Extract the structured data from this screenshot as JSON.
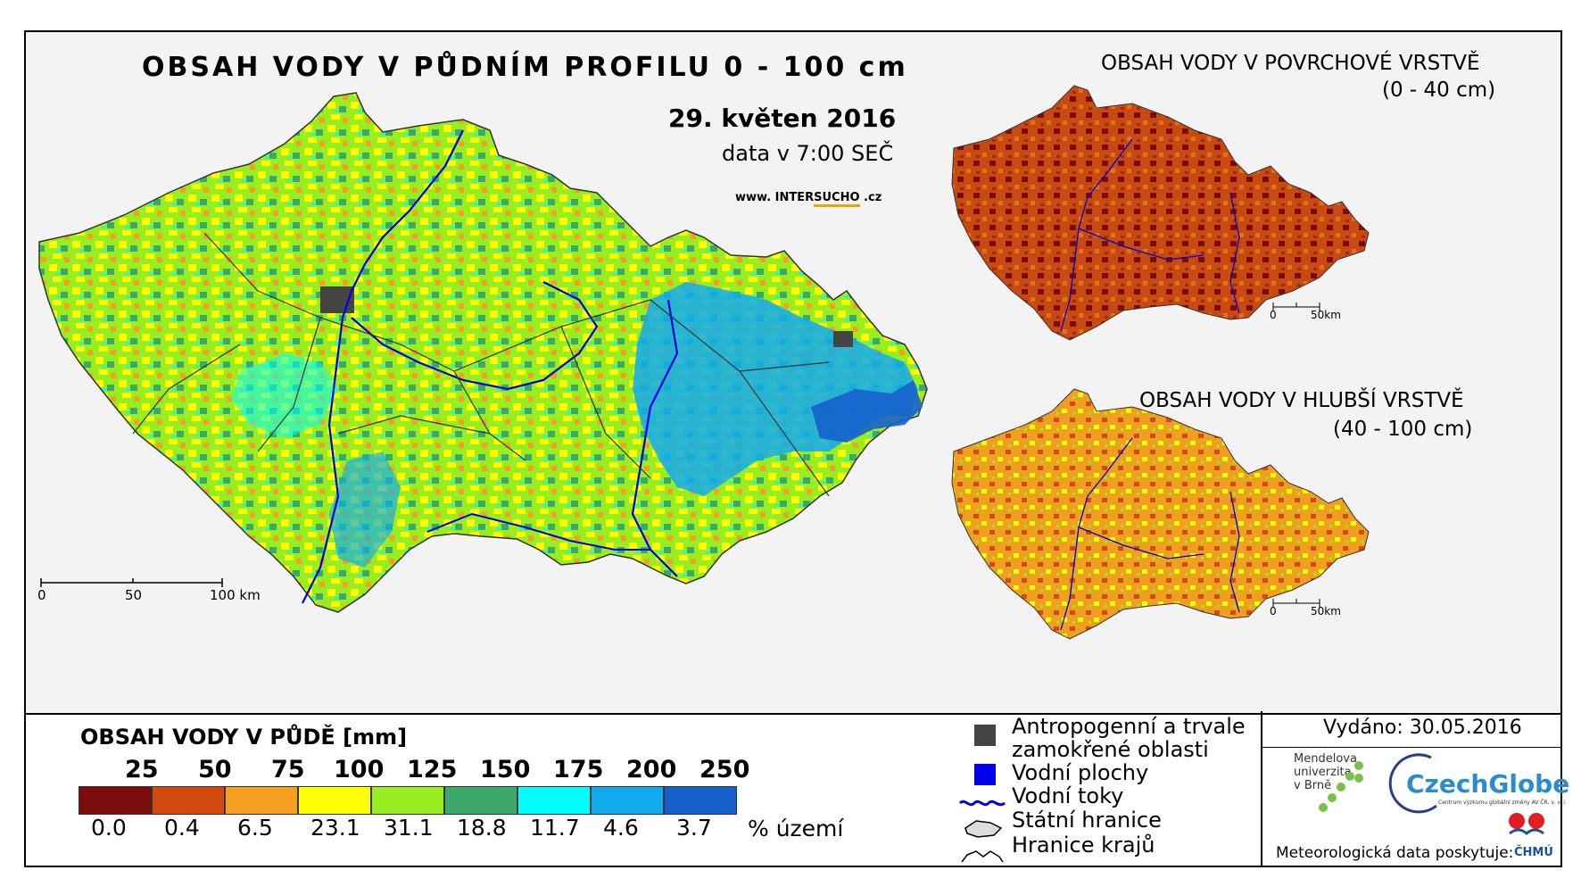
{
  "titles": {
    "main": "OBSAH VODY V PŮDNÍM PROFILU 0 - 100 cm",
    "date": "29. květen 2016",
    "time": "data v 7:00 SEČ",
    "web_prefix": "www. INTER",
    "web_highlight": "SUCHO",
    "web_suffix": " .cz",
    "surface": "OBSAH VODY V POVRCHOVÉ VRSTVĚ",
    "surface_range": "(0 - 40 cm)",
    "deep": "OBSAH VODY V HLUBŠÍ VRSTVĚ",
    "deep_range": "(40 - 100 cm)"
  },
  "scalebars": {
    "main": [
      "0",
      "50",
      "100 km"
    ],
    "small": [
      "0",
      "50km"
    ]
  },
  "legend": {
    "title": "OBSAH VODY V PŮDĚ [mm]",
    "thresholds": [
      "25",
      "50",
      "75",
      "100",
      "125",
      "150",
      "175",
      "200",
      "250"
    ],
    "percent_label": "% území",
    "classes": [
      {
        "color": "#7b0c0c",
        "percent": "0.0"
      },
      {
        "color": "#d24a0e",
        "percent": "0.4"
      },
      {
        "color": "#f5a020",
        "percent": "6.5"
      },
      {
        "color": "#ffff00",
        "percent": "23.1"
      },
      {
        "color": "#99ee22",
        "percent": "31.1"
      },
      {
        "color": "#3ca86a",
        "percent": "18.8"
      },
      {
        "color": "#00ffff",
        "percent": "11.7"
      },
      {
        "color": "#11aaee",
        "percent": "4.6"
      },
      {
        "color": "#1560cc",
        "percent": "3.7"
      }
    ]
  },
  "symbols": [
    {
      "label1": "Antropogenní a trvale",
      "label2": "zamokřené oblasti",
      "icon": "gray-square-icon",
      "color": "#444444"
    },
    {
      "label1": "Vodní plochy",
      "icon": "blue-square-icon",
      "color": "#0000ee"
    },
    {
      "label1": "Vodní toky",
      "icon": "river-line-icon",
      "color": "#0000dd"
    },
    {
      "label1": "Státní hranice",
      "icon": "state-border-icon"
    },
    {
      "label1": "Hranice krajů",
      "icon": "region-border-icon"
    }
  ],
  "issued": "Vydáno: 30.05.2016",
  "logos": {
    "mendel": "Mendelova\nuniverzita\nv Brně",
    "czechglobe": "CzechGlobe",
    "czechglobe_sub": "Centrum výzkumu globální změny AV ČR, v. v. i.",
    "meteo": "Meteorologická data poskytuje:",
    "chmu": "ČHMÚ"
  }
}
